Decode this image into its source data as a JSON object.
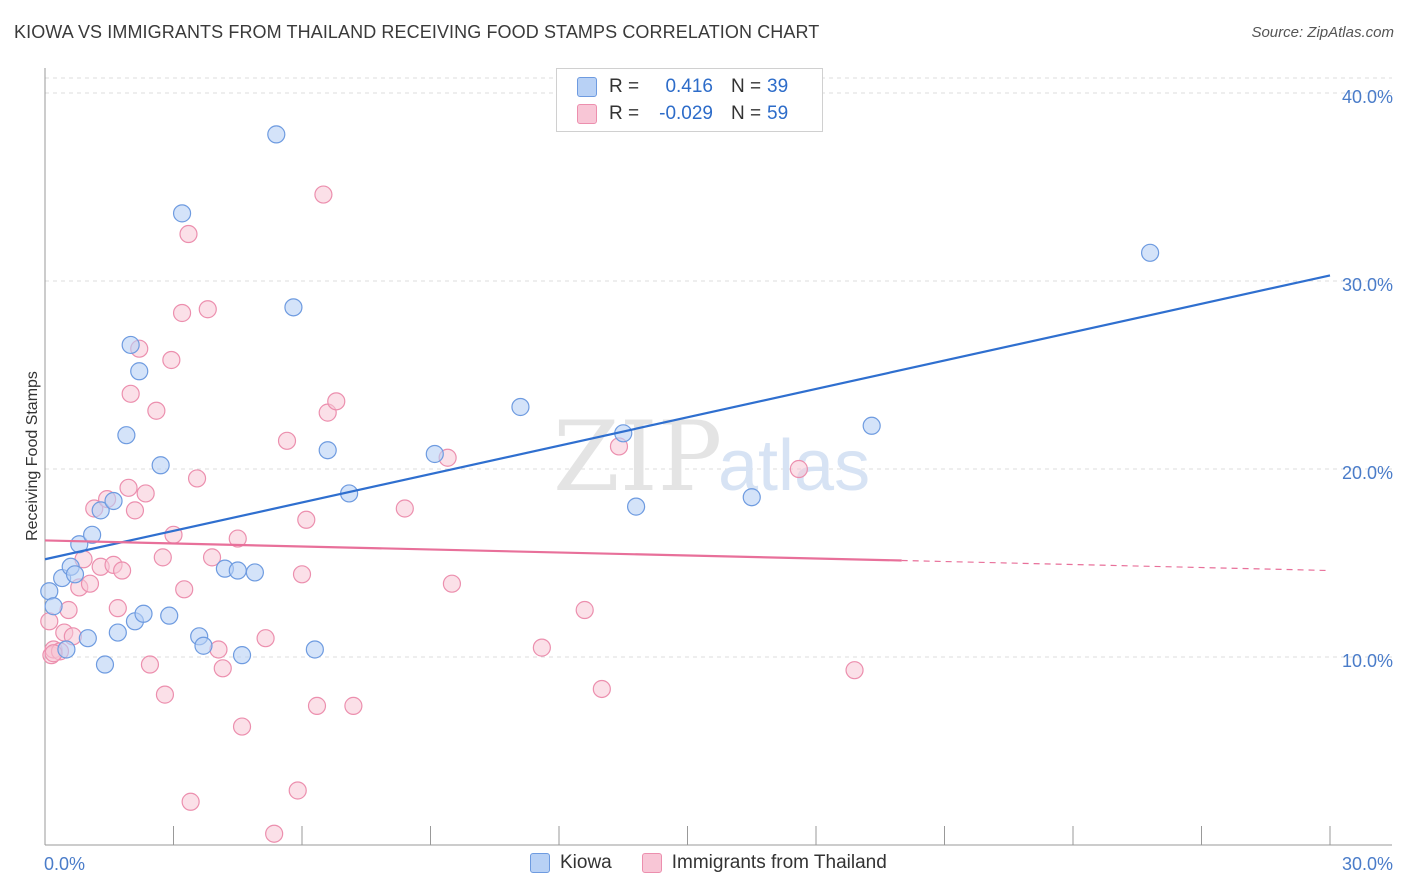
{
  "title": "KIOWA VS IMMIGRANTS FROM THAILAND RECEIVING FOOD STAMPS CORRELATION CHART",
  "source": "Source: ZipAtlas.com",
  "watermark": {
    "zip": "ZIP",
    "atlas": "atlas"
  },
  "colors": {
    "kiowa_fill": "#b8d1f5",
    "kiowa_stroke": "#6e9be0",
    "kiowa_line": "#2f6fcf",
    "thai_fill": "#f8c6d6",
    "thai_stroke": "#ec8fae",
    "thai_line": "#e8709a",
    "tick_text": "#4a7cc9",
    "grid": "#dcdcdc"
  },
  "legend": {
    "rows": [
      {
        "r_label": "R =",
        "r_value": "0.416",
        "n_label": "N =",
        "n_value": "39"
      },
      {
        "r_label": "R =",
        "r_value": "-0.029",
        "n_label": "N =",
        "n_value": "59"
      }
    ]
  },
  "bottom_legend": {
    "kiowa": "Kiowa",
    "thai": "Immigrants from Thailand"
  },
  "chart_data": {
    "type": "scatter",
    "title": "KIOWA VS IMMIGRANTS FROM THAILAND RECEIVING FOOD STAMPS CORRELATION CHART",
    "xlabel": "",
    "ylabel": "Receiving Food Stamps",
    "xlim": [
      0,
      30
    ],
    "ylim": [
      0,
      40.8
    ],
    "x_tick_labels": [
      {
        "v": 0,
        "label": "0.0%"
      },
      {
        "v": 30,
        "label": "30.0%"
      }
    ],
    "y_tick_labels": [
      {
        "v": 10,
        "label": "10.0%"
      },
      {
        "v": 20,
        "label": "20.0%"
      },
      {
        "v": 30,
        "label": "30.0%"
      },
      {
        "v": 40,
        "label": "40.0%"
      }
    ],
    "grid": true,
    "series": [
      {
        "name": "Kiowa",
        "r": 0.416,
        "n": 39,
        "trend": {
          "x": [
            0,
            30
          ],
          "y": [
            15.2,
            30.3
          ],
          "dashed_from": null
        },
        "points": [
          [
            0.1,
            13.5
          ],
          [
            0.2,
            12.7
          ],
          [
            0.4,
            14.2
          ],
          [
            0.5,
            10.4
          ],
          [
            0.6,
            14.8
          ],
          [
            0.7,
            14.4
          ],
          [
            0.8,
            16.0
          ],
          [
            1.0,
            11.0
          ],
          [
            1.1,
            16.5
          ],
          [
            1.3,
            17.8
          ],
          [
            1.4,
            9.6
          ],
          [
            1.6,
            18.3
          ],
          [
            1.7,
            11.3
          ],
          [
            1.9,
            21.8
          ],
          [
            2.0,
            26.6
          ],
          [
            2.1,
            11.9
          ],
          [
            2.2,
            25.2
          ],
          [
            2.3,
            12.3
          ],
          [
            2.7,
            20.2
          ],
          [
            2.9,
            12.2
          ],
          [
            3.2,
            33.6
          ],
          [
            3.6,
            11.1
          ],
          [
            3.7,
            10.6
          ],
          [
            4.2,
            14.7
          ],
          [
            4.5,
            14.6
          ],
          [
            4.6,
            10.1
          ],
          [
            4.9,
            14.5
          ],
          [
            5.4,
            37.8
          ],
          [
            5.8,
            28.6
          ],
          [
            6.3,
            10.4
          ],
          [
            6.6,
            21.0
          ],
          [
            7.1,
            18.7
          ],
          [
            9.1,
            20.8
          ],
          [
            11.1,
            23.3
          ],
          [
            13.5,
            21.9
          ],
          [
            13.8,
            18.0
          ],
          [
            16.5,
            18.5
          ],
          [
            19.3,
            22.3
          ],
          [
            25.8,
            31.5
          ]
        ]
      },
      {
        "name": "Immigrants from Thailand",
        "r": -0.029,
        "n": 59,
        "trend": {
          "x": [
            0,
            30
          ],
          "y": [
            16.2,
            14.6
          ],
          "dashed_from": 20.0
        },
        "points": [
          [
            0.1,
            11.9
          ],
          [
            0.15,
            10.1
          ],
          [
            0.2,
            10.4
          ],
          [
            0.35,
            10.3
          ],
          [
            0.45,
            11.3
          ],
          [
            0.55,
            12.5
          ],
          [
            0.65,
            11.1
          ],
          [
            0.8,
            13.7
          ],
          [
            0.9,
            15.2
          ],
          [
            1.05,
            13.9
          ],
          [
            1.15,
            17.9
          ],
          [
            1.3,
            14.8
          ],
          [
            1.45,
            18.4
          ],
          [
            1.6,
            14.9
          ],
          [
            1.7,
            12.6
          ],
          [
            1.8,
            14.6
          ],
          [
            1.95,
            19.0
          ],
          [
            2.0,
            24.0
          ],
          [
            2.1,
            17.8
          ],
          [
            2.2,
            26.4
          ],
          [
            2.35,
            18.7
          ],
          [
            2.45,
            9.6
          ],
          [
            2.6,
            23.1
          ],
          [
            2.75,
            15.3
          ],
          [
            2.8,
            8.0
          ],
          [
            2.95,
            25.8
          ],
          [
            3.0,
            16.5
          ],
          [
            3.2,
            28.3
          ],
          [
            3.25,
            13.6
          ],
          [
            3.35,
            32.5
          ],
          [
            3.4,
            2.3
          ],
          [
            3.55,
            19.5
          ],
          [
            3.8,
            28.5
          ],
          [
            3.9,
            15.3
          ],
          [
            4.05,
            10.4
          ],
          [
            4.15,
            9.4
          ],
          [
            4.5,
            16.3
          ],
          [
            4.6,
            6.3
          ],
          [
            5.15,
            11.0
          ],
          [
            5.35,
            0.6
          ],
          [
            5.65,
            21.5
          ],
          [
            5.9,
            2.9
          ],
          [
            6.0,
            14.4
          ],
          [
            6.1,
            17.3
          ],
          [
            6.35,
            7.4
          ],
          [
            6.5,
            34.6
          ],
          [
            6.6,
            23.0
          ],
          [
            6.8,
            23.6
          ],
          [
            7.2,
            7.4
          ],
          [
            8.4,
            17.9
          ],
          [
            9.4,
            20.6
          ],
          [
            9.5,
            13.9
          ],
          [
            11.6,
            10.5
          ],
          [
            12.6,
            12.5
          ],
          [
            13.0,
            8.3
          ],
          [
            13.4,
            21.2
          ],
          [
            17.6,
            20.0
          ],
          [
            18.9,
            9.3
          ],
          [
            0.2,
            10.2
          ]
        ]
      }
    ]
  }
}
